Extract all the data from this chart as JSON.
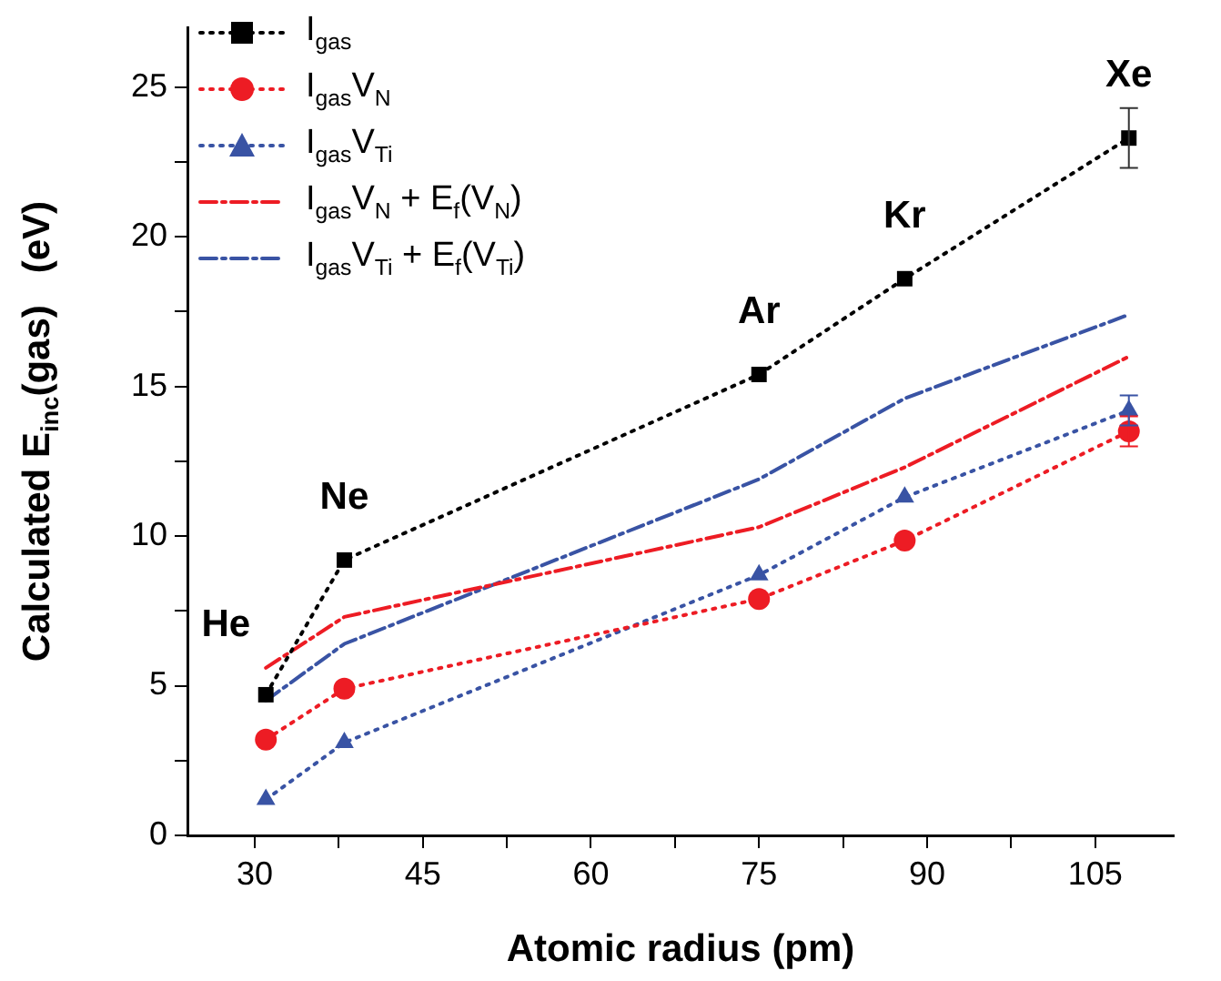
{
  "chart_data": {
    "type": "line",
    "xlabel": "Atomic radius (pm)",
    "ylabel": "Calculated E$_{inc}$(gas)   (eV)",
    "x": [
      31,
      38,
      75,
      88,
      108
    ],
    "xlim": [
      24,
      112
    ],
    "xticks": [
      30,
      {
        "value": 37.5,
        "label": null
      },
      45,
      {
        "value": 52.5,
        "label": null
      },
      60,
      {
        "value": 67.5,
        "label": null
      },
      75,
      {
        "value": 82.5,
        "label": null
      },
      90,
      {
        "value": 97.5,
        "label": null
      },
      105
    ],
    "ylim": [
      0,
      27
    ],
    "yticks": [
      0,
      {
        "value": 2.5,
        "label": null
      },
      5,
      {
        "value": 7.5,
        "label": null
      },
      10,
      {
        "value": 12.5,
        "label": null
      },
      15,
      {
        "value": 17.5,
        "label": null
      },
      20,
      {
        "value": 22.5,
        "label": null
      },
      25
    ],
    "series": [
      {
        "name": "I$_{gas}$",
        "color": "#000000",
        "marker": "square",
        "line_style": "dotted",
        "values": [
          4.7,
          9.2,
          15.4,
          18.6,
          23.3
        ],
        "errors": [
          null,
          null,
          null,
          null,
          1.0
        ]
      },
      {
        "name": "I$_{gas}$V$_{N}$",
        "color": "#ed1c24",
        "marker": "circle",
        "line_style": "dotted",
        "values": [
          3.2,
          4.9,
          7.9,
          9.85,
          13.5
        ],
        "errors": [
          null,
          null,
          null,
          null,
          0.5
        ]
      },
      {
        "name": "I$_{gas}$V$_{Ti}$",
        "color": "#3953a4",
        "marker": "triangle",
        "line_style": "dotted",
        "values": [
          1.2,
          3.1,
          8.7,
          11.3,
          14.2
        ],
        "errors": [
          null,
          null,
          null,
          null,
          0.5
        ]
      },
      {
        "name": "I$_{gas}$V$_{N}$ + E$_{f}$(V$_{N}$)",
        "color": "#ed1c24",
        "marker": "none",
        "line_style": "dashed",
        "values": [
          5.6,
          7.3,
          10.3,
          12.3,
          16.0
        ]
      },
      {
        "name": "I$_{gas}$V$_{Ti}$ + E$_{f}$(V$_{Ti}$)",
        "color": "#3953a4",
        "marker": "none",
        "line_style": "dashed",
        "values": [
          4.5,
          6.4,
          11.9,
          14.6,
          17.4
        ]
      }
    ],
    "annotations": [
      {
        "text": "He",
        "x": 31,
        "y": 4.7
      },
      {
        "text": "Ne",
        "x": 38,
        "y": 9.2
      },
      {
        "text": "Ar",
        "x": 75,
        "y": 15.4
      },
      {
        "text": "Kr",
        "x": 88,
        "y": 18.6
      },
      {
        "text": "Xe",
        "x": 108,
        "y": 23.3
      }
    ],
    "legend": "top left",
    "grid": false
  }
}
